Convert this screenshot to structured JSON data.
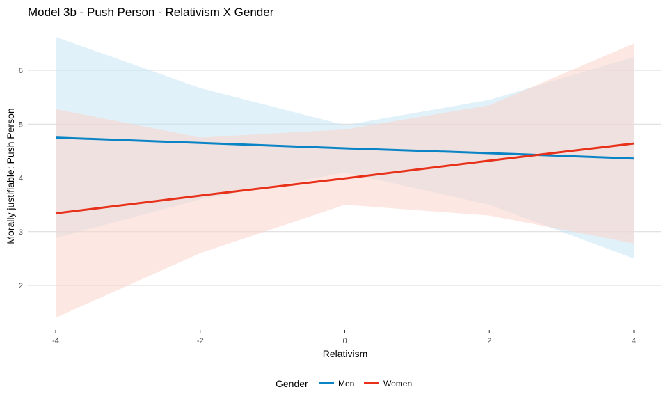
{
  "chart_data": {
    "type": "line",
    "title": "Model 3b - Push Person - Relativism X Gender",
    "xlabel": "Relativism",
    "ylabel": "Morally justifiable: Push Person",
    "xlim": [
      -4,
      4
    ],
    "ylim": [
      1.3,
      6.6
    ],
    "x_ticks": [
      -4,
      -2,
      0,
      2,
      4
    ],
    "y_ticks": [
      2,
      3,
      4,
      5,
      6
    ],
    "grid": "horizontal major gridlines",
    "legend": {
      "title": "Gender",
      "position": "bottom"
    },
    "series": [
      {
        "name": "Men",
        "color": "#0b84c6",
        "ribbon_color": "#c8e6f4",
        "x": [
          -4,
          -2,
          0,
          2,
          4
        ],
        "y": [
          4.75,
          4.65,
          4.55,
          4.46,
          4.36
        ],
        "lower": [
          2.88,
          3.6,
          4.1,
          3.5,
          2.5
        ],
        "upper": [
          6.62,
          5.67,
          4.98,
          5.45,
          6.25
        ]
      },
      {
        "name": "Women",
        "color": "#e8311a",
        "ribbon_color": "#fbd3cb",
        "x": [
          -4,
          -2,
          0,
          2,
          4
        ],
        "y": [
          3.34,
          3.67,
          3.99,
          4.32,
          4.64
        ],
        "lower": [
          1.4,
          2.6,
          3.5,
          3.3,
          2.78
        ],
        "upper": [
          5.28,
          4.75,
          4.9,
          5.35,
          6.5
        ]
      }
    ]
  }
}
